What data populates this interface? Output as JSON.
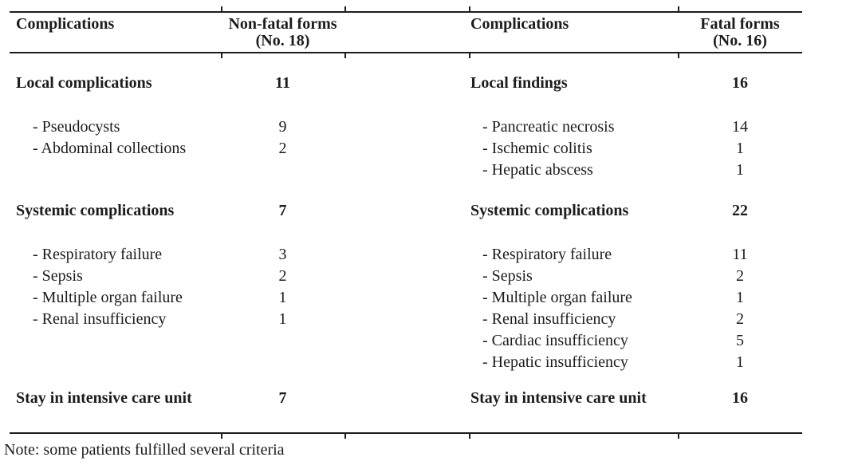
{
  "table": {
    "header": {
      "col1": "Complications",
      "col2_line1": "Non-fatal forms",
      "col2_line2": "(No. 18)",
      "col3": "Complications",
      "col4_line1": "Fatal forms",
      "col4_line2": "(No. 16)"
    },
    "rows": [
      {
        "style": "section",
        "left_label": "Local complications",
        "left_value": "11",
        "right_label": "Local findings",
        "right_value": "16"
      },
      {
        "style": "item",
        "left_label": "- Pseudocysts",
        "left_value": "9",
        "right_label": "- Pancreatic necrosis",
        "right_value": "14"
      },
      {
        "style": "item",
        "left_label": "- Abdominal collections",
        "left_value": "2",
        "right_label": "- Ischemic colitis",
        "right_value": "1"
      },
      {
        "style": "item",
        "left_label": null,
        "left_value": null,
        "right_label": "- Hepatic abscess",
        "right_value": "1"
      },
      {
        "style": "section",
        "left_label": "Systemic complications",
        "left_value": "7",
        "right_label": "Systemic complications",
        "right_value": "22"
      },
      {
        "style": "item",
        "left_label": "- Respiratory failure",
        "left_value": "3",
        "right_label": "- Respiratory failure",
        "right_value": "11"
      },
      {
        "style": "item",
        "left_label": "- Sepsis",
        "left_value": "2",
        "right_label": "- Sepsis",
        "right_value": "2"
      },
      {
        "style": "item",
        "left_label": "- Multiple organ failure",
        "left_value": "1",
        "right_label": "- Multiple organ failure",
        "right_value": "1"
      },
      {
        "style": "item",
        "left_label": "- Renal insufficiency",
        "left_value": "1",
        "right_label": "- Renal insufficiency",
        "right_value": "2"
      },
      {
        "style": "item",
        "left_label": null,
        "left_value": null,
        "right_label": "- Cardiac insufficiency",
        "right_value": "5"
      },
      {
        "style": "item",
        "left_label": null,
        "left_value": null,
        "right_label": "- Hepatic insufficiency",
        "right_value": "1"
      },
      {
        "style": "section",
        "left_label": "Stay in intensive care unit",
        "left_value": "7",
        "right_label": "Stay in intensive care unit",
        "right_value": "16"
      }
    ]
  },
  "note": "Note: some patients fulfilled several criteria",
  "colors": {
    "ink": "#1c1c1c",
    "background": "#ffffff"
  }
}
